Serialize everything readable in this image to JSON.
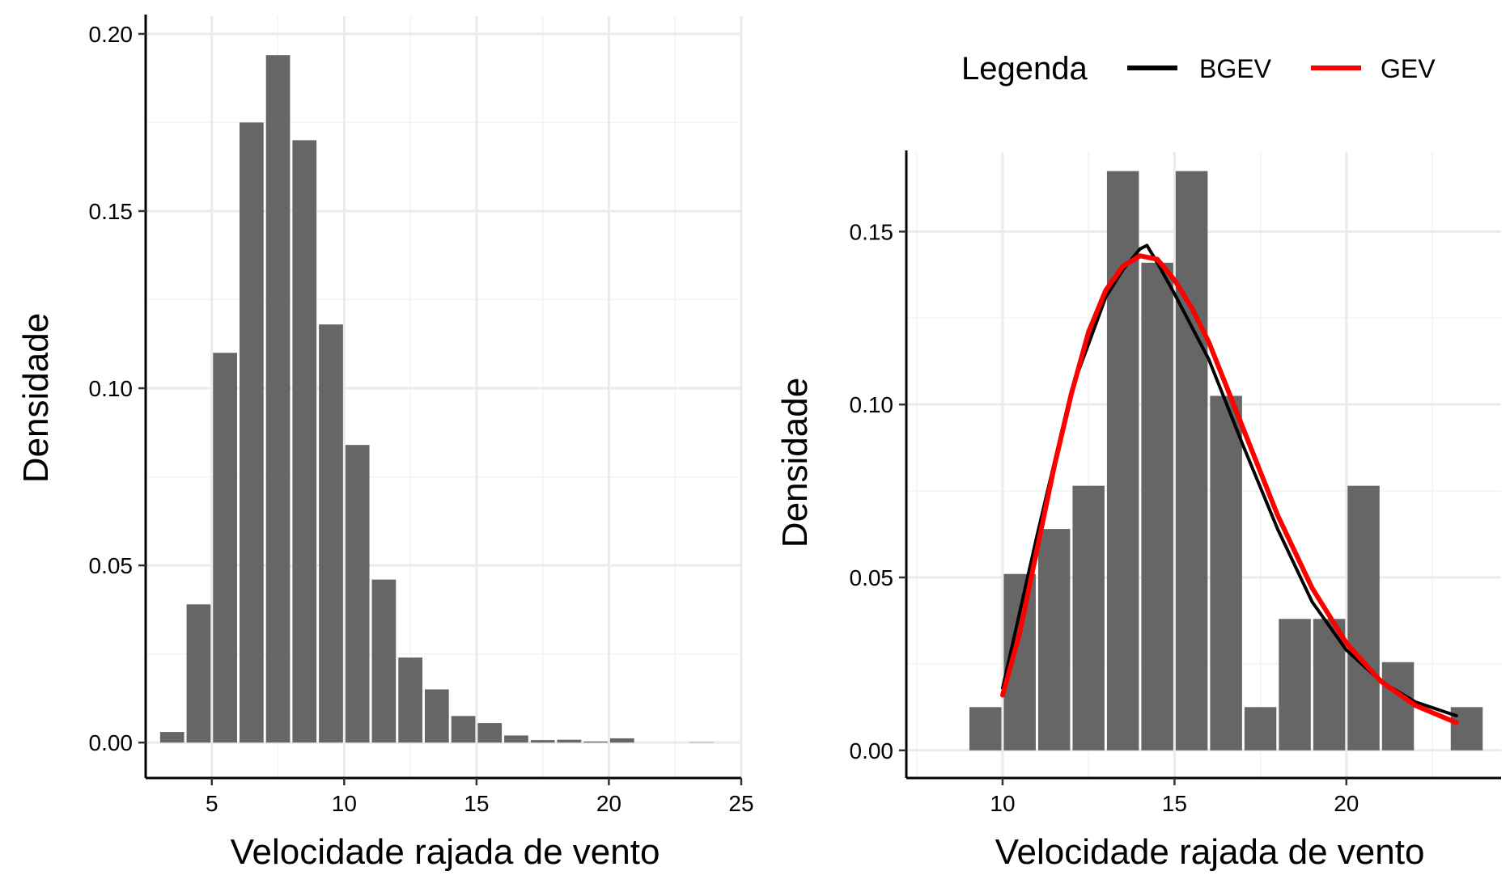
{
  "chart_data": [
    {
      "type": "bar",
      "xlabel": "Velocidade rajada de vento",
      "ylabel": "Densidade",
      "xlim": [
        2.5,
        25
      ],
      "ylim": [
        -0.01,
        0.205
      ],
      "x_ticks": [
        5,
        10,
        15,
        20,
        25
      ],
      "x_tick_labels": [
        "5",
        "10",
        "15",
        "20",
        "25"
      ],
      "y_ticks": [
        0,
        0.05,
        0.1,
        0.15,
        0.2
      ],
      "y_tick_labels": [
        "0.00",
        "0.05",
        "0.10",
        "0.15",
        "0.20"
      ],
      "grid": true,
      "bin_width": 1,
      "bar_color": "#666666",
      "x": [
        3.5,
        4.5,
        5.5,
        6.5,
        7.5,
        8.5,
        9.5,
        10.5,
        11.5,
        12.5,
        13.5,
        14.5,
        15.5,
        16.5,
        17.5,
        18.5,
        19.5,
        20.5,
        21.5,
        22.5,
        23.5
      ],
      "values": [
        0.003,
        0.039,
        0.11,
        0.175,
        0.194,
        0.17,
        0.118,
        0.084,
        0.046,
        0.024,
        0.015,
        0.0075,
        0.0055,
        0.002,
        0.0007,
        0.0008,
        0.0003,
        0.0012,
        0.0,
        0.0,
        0.0001
      ]
    },
    {
      "type": "bar",
      "xlabel": "Velocidade rajada de vento",
      "ylabel": "Densidade",
      "xlim": [
        7.2,
        24.5
      ],
      "ylim": [
        -0.008,
        0.173
      ],
      "x_ticks": [
        10,
        15,
        20
      ],
      "x_tick_labels": [
        "10",
        "15",
        "20"
      ],
      "y_ticks": [
        0,
        0.05,
        0.1,
        0.15
      ],
      "y_tick_labels": [
        "0.00",
        "0.05",
        "0.10",
        "0.15"
      ],
      "grid": true,
      "bin_width": 1,
      "bar_color": "#666666",
      "x": [
        9.5,
        10.5,
        11.5,
        12.5,
        13.5,
        14.5,
        15.5,
        16.5,
        17.5,
        18.5,
        19.5,
        20.5,
        21.5,
        22.5,
        23.5
      ],
      "values": [
        0.0125,
        0.051,
        0.064,
        0.0765,
        0.1675,
        0.141,
        0.1675,
        0.1025,
        0.0125,
        0.038,
        0.038,
        0.0765,
        0.0255,
        0.0,
        0.0125
      ],
      "legend": {
        "title": "Legenda",
        "position": "top",
        "entries": [
          {
            "name": "BGEV",
            "color": "#000000"
          },
          {
            "name": "GEV",
            "color": "#ff0000"
          }
        ]
      },
      "series": [
        {
          "name": "BGEV",
          "color": "#000000",
          "x": [
            10,
            11,
            12,
            13,
            13.5,
            14,
            14.2,
            14.5,
            15,
            16,
            17,
            18,
            19,
            20,
            21,
            22,
            23.2
          ],
          "y": [
            0.018,
            0.062,
            0.104,
            0.131,
            0.139,
            0.145,
            0.146,
            0.141,
            0.132,
            0.113,
            0.088,
            0.064,
            0.043,
            0.029,
            0.02,
            0.014,
            0.01
          ]
        },
        {
          "name": "GEV",
          "color": "#ff0000",
          "x": [
            10,
            10.5,
            11,
            11.5,
            12,
            12.5,
            13,
            13.5,
            14,
            14.5,
            15,
            15.5,
            16,
            17,
            18,
            19,
            20,
            21,
            22,
            23.2
          ],
          "y": [
            0.016,
            0.034,
            0.058,
            0.082,
            0.103,
            0.121,
            0.133,
            0.14,
            0.143,
            0.142,
            0.136,
            0.128,
            0.118,
            0.093,
            0.068,
            0.047,
            0.031,
            0.02,
            0.013,
            0.008
          ]
        }
      ]
    }
  ]
}
